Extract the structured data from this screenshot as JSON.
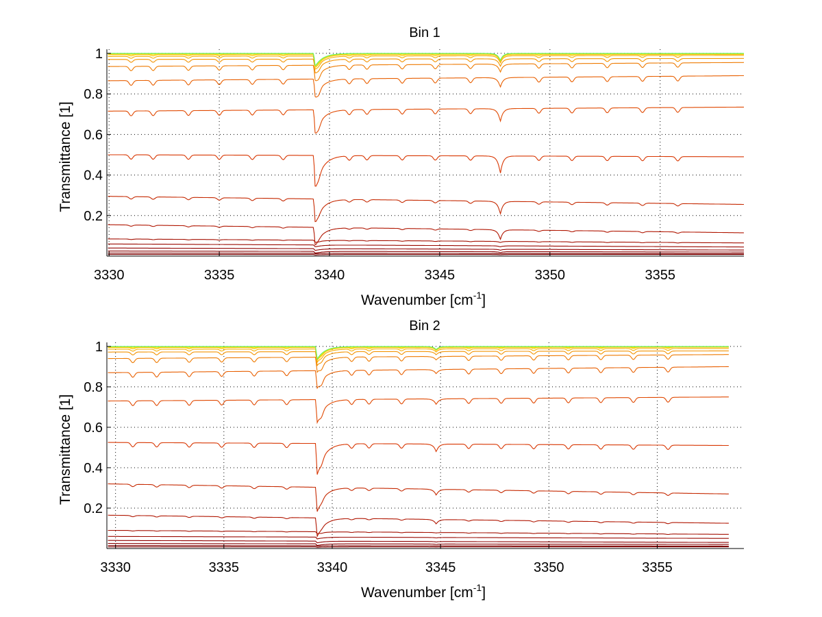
{
  "chart_data": [
    {
      "type": "line",
      "title": "Bin 1",
      "xlabel": "Wavenumber [cm",
      "xlabel_sup": "-1",
      "xlabel_end": "]",
      "ylabel": "Transmittance [1]",
      "xlim": [
        3329.9,
        3358.8
      ],
      "ylim": [
        0,
        1.02
      ],
      "xticks": [
        3330,
        3335,
        3340,
        3345,
        3350,
        3355
      ],
      "yticks": [
        0.2,
        0.4,
        0.6,
        0.8,
        1
      ],
      "ytick_labels": [
        "0.2",
        "0.4",
        "0.6",
        "0.8",
        "1"
      ],
      "grid": true,
      "x_end": 3358.8,
      "strong_line": {
        "x": 3339.35,
        "width": 0.12
      },
      "second_line": {
        "x": 3347.75,
        "width": 0.05,
        "scale": 0.55
      },
      "absorption_lines": [
        3331.0,
        3332.0,
        3333.6,
        3335.0,
        3336.5,
        3337.9,
        3339.5,
        3340.9,
        3341.7,
        3343.3,
        3344.8,
        3346.4,
        3349.5,
        3351.0,
        3352.6,
        3354.2,
        3355.8
      ],
      "series": [
        {
          "color": "#7a0000",
          "start": 0.008,
          "end": 0.008,
          "depth": 0.0
        },
        {
          "color": "#7f0000",
          "start": 0.015,
          "end": 0.012,
          "depth": 0.0
        },
        {
          "color": "#870000",
          "start": 0.025,
          "end": 0.02,
          "depth": 0.0
        },
        {
          "color": "#8f0000",
          "start": 0.04,
          "end": 0.03,
          "depth": 0.0
        },
        {
          "color": "#990800",
          "start": 0.06,
          "end": 0.045,
          "depth": 0.0
        },
        {
          "color": "#a30f00",
          "start": 0.085,
          "end": 0.065,
          "depth": 0.002
        },
        {
          "color": "#b01500",
          "start": 0.155,
          "end": 0.115,
          "depth": 0.005
        },
        {
          "color": "#c52800",
          "start": 0.295,
          "end": 0.255,
          "depth": 0.01
        },
        {
          "color": "#d83500",
          "start": 0.5,
          "end": 0.49,
          "depth": 0.018
        },
        {
          "color": "#e04800",
          "start": 0.715,
          "end": 0.735,
          "depth": 0.02
        },
        {
          "color": "#e85f00",
          "start": 0.865,
          "end": 0.89,
          "depth": 0.02
        },
        {
          "color": "#ee7a00",
          "start": 0.935,
          "end": 0.955,
          "depth": 0.018
        },
        {
          "color": "#f39300",
          "start": 0.97,
          "end": 0.975,
          "depth": 0.012
        },
        {
          "color": "#f6ab00",
          "start": 0.985,
          "end": 0.99,
          "depth": 0.008
        },
        {
          "color": "#f9c300",
          "start": 0.993,
          "end": 0.995,
          "depth": 0.005
        },
        {
          "color": "#fbdc00",
          "start": 0.997,
          "end": 0.998,
          "depth": 0.003
        },
        {
          "color": "#ccee33",
          "start": 0.999,
          "end": 0.999,
          "depth": 0.001
        },
        {
          "color": "#66ee66",
          "start": 1.0,
          "end": 1.0,
          "depth": 0.0
        }
      ]
    },
    {
      "type": "line",
      "title": "Bin 2",
      "xlabel": "Wavenumber [cm",
      "xlabel_sup": "-1",
      "xlabel_end": "]",
      "ylabel": "Transmittance [1]",
      "xlim": [
        3329.6,
        3359.0
      ],
      "ylim": [
        0,
        1.02
      ],
      "xticks": [
        3330,
        3335,
        3340,
        3345,
        3350,
        3355
      ],
      "yticks": [
        0.2,
        0.4,
        0.6,
        0.8,
        1
      ],
      "ytick_labels": [
        "0.2",
        "0.4",
        "0.6",
        "0.8",
        "1"
      ],
      "grid": true,
      "x_end": 3358.3,
      "strong_line": {
        "x": 3339.3,
        "width": 0.12
      },
      "second_line": {
        "x": 3344.8,
        "width": 0.05,
        "scale": 0.25
      },
      "absorption_lines": [
        3330.8,
        3331.9,
        3333.4,
        3334.9,
        3336.4,
        3337.9,
        3339.5,
        3340.9,
        3341.7,
        3343.2,
        3346.3,
        3347.8,
        3349.3,
        3350.9,
        3352.4,
        3353.9,
        3355.5
      ],
      "series": [
        {
          "color": "#7a0000",
          "start": 0.008,
          "end": 0.008,
          "depth": 0.0
        },
        {
          "color": "#7f0000",
          "start": 0.015,
          "end": 0.012,
          "depth": 0.0
        },
        {
          "color": "#870000",
          "start": 0.025,
          "end": 0.02,
          "depth": 0.0
        },
        {
          "color": "#8f0000",
          "start": 0.04,
          "end": 0.03,
          "depth": 0.0
        },
        {
          "color": "#990800",
          "start": 0.06,
          "end": 0.05,
          "depth": 0.0
        },
        {
          "color": "#a30f00",
          "start": 0.09,
          "end": 0.07,
          "depth": 0.002
        },
        {
          "color": "#b01500",
          "start": 0.165,
          "end": 0.125,
          "depth": 0.005
        },
        {
          "color": "#c52800",
          "start": 0.32,
          "end": 0.27,
          "depth": 0.01
        },
        {
          "color": "#d83500",
          "start": 0.525,
          "end": 0.51,
          "depth": 0.018
        },
        {
          "color": "#e04800",
          "start": 0.73,
          "end": 0.75,
          "depth": 0.02
        },
        {
          "color": "#e85f00",
          "start": 0.87,
          "end": 0.9,
          "depth": 0.02
        },
        {
          "color": "#ee7a00",
          "start": 0.94,
          "end": 0.96,
          "depth": 0.018
        },
        {
          "color": "#f39300",
          "start": 0.972,
          "end": 0.978,
          "depth": 0.012
        },
        {
          "color": "#f6ab00",
          "start": 0.986,
          "end": 0.99,
          "depth": 0.008
        },
        {
          "color": "#f9c300",
          "start": 0.994,
          "end": 0.996,
          "depth": 0.005
        },
        {
          "color": "#fbdc00",
          "start": 0.997,
          "end": 0.998,
          "depth": 0.003
        },
        {
          "color": "#ccee33",
          "start": 0.999,
          "end": 0.999,
          "depth": 0.001
        },
        {
          "color": "#66ee66",
          "start": 1.0,
          "end": 1.0,
          "depth": 0.0
        }
      ]
    }
  ]
}
